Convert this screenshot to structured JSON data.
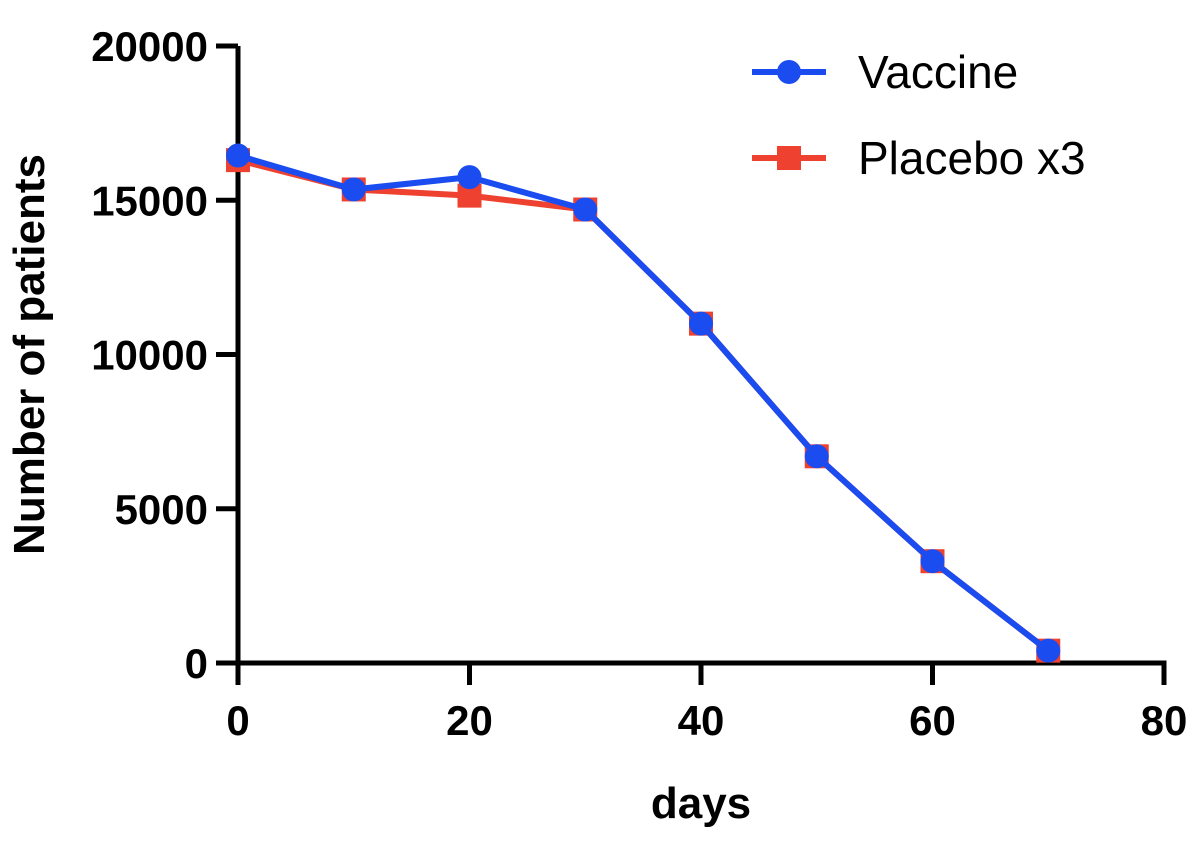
{
  "chart_data": {
    "type": "line",
    "title": "",
    "xlabel": "days",
    "ylabel": "Number of patients",
    "xlim": [
      0,
      80
    ],
    "ylim": [
      0,
      20000
    ],
    "x_ticks": [
      0,
      20,
      40,
      60,
      80
    ],
    "y_ticks": [
      0,
      5000,
      10000,
      15000,
      20000
    ],
    "grid": false,
    "legend_position": "top-right",
    "series": [
      {
        "name": "Vaccine",
        "marker": "circle",
        "color": "#1a4cf0",
        "x": [
          0,
          10,
          20,
          30,
          40,
          50,
          60,
          70
        ],
        "y": [
          16450,
          15350,
          15750,
          14700,
          11000,
          6700,
          3300,
          400
        ]
      },
      {
        "name": "Placebo x3",
        "marker": "square",
        "color": "#ee4130",
        "x": [
          0,
          10,
          20,
          30,
          40,
          50,
          60,
          70
        ],
        "y": [
          16300,
          15350,
          15150,
          14700,
          11000,
          6700,
          3300,
          400
        ]
      }
    ]
  }
}
